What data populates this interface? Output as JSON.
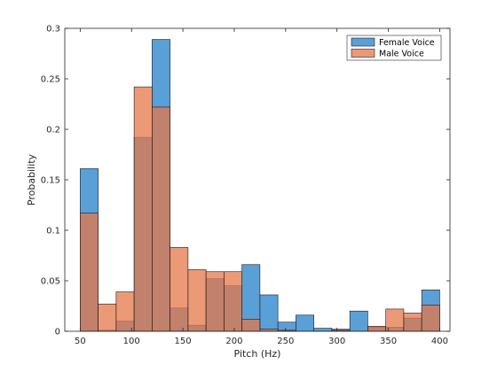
{
  "chart_data": {
    "type": "bar",
    "subtype": "overlaid-histogram",
    "xlabel": "Pitch (Hz)",
    "ylabel": "Probability",
    "xlim": [
      35,
      410
    ],
    "ylim": [
      0,
      0.3
    ],
    "x_ticks": [
      50,
      100,
      150,
      200,
      250,
      300,
      350,
      400
    ],
    "y_ticks": [
      0,
      0.05,
      0.1,
      0.15,
      0.2,
      0.25,
      0.3
    ],
    "y_tick_labels": [
      "0",
      "0.05",
      "0.1",
      "0.15",
      "0.2",
      "0.25",
      "0.3"
    ],
    "bin_edges": [
      50,
      67.5,
      85,
      102.5,
      120,
      137.5,
      155,
      172.5,
      190,
      207.5,
      225,
      242.5,
      260,
      277.5,
      295,
      312.5,
      330,
      347.5,
      365,
      382.5,
      400
    ],
    "grid": false,
    "legend_position": "top-right",
    "series": [
      {
        "name": "Female Voice",
        "color": "#3d8fd0",
        "values": [
          0.161,
          0.001,
          0.01,
          0.192,
          0.289,
          0.023,
          0.006,
          0.052,
          0.045,
          0.066,
          0.036,
          0.009,
          0.016,
          0.003,
          0.002,
          0.02,
          0.004,
          0.004,
          0.013,
          0.041
        ]
      },
      {
        "name": "Male Voice",
        "color": "#e6774a",
        "values": [
          0.117,
          0.027,
          0.039,
          0.242,
          0.222,
          0.083,
          0.061,
          0.059,
          0.059,
          0.012,
          0.002,
          0.001,
          0.0,
          0.0,
          0.001,
          0.0,
          0.005,
          0.022,
          0.018,
          0.026
        ]
      }
    ]
  }
}
